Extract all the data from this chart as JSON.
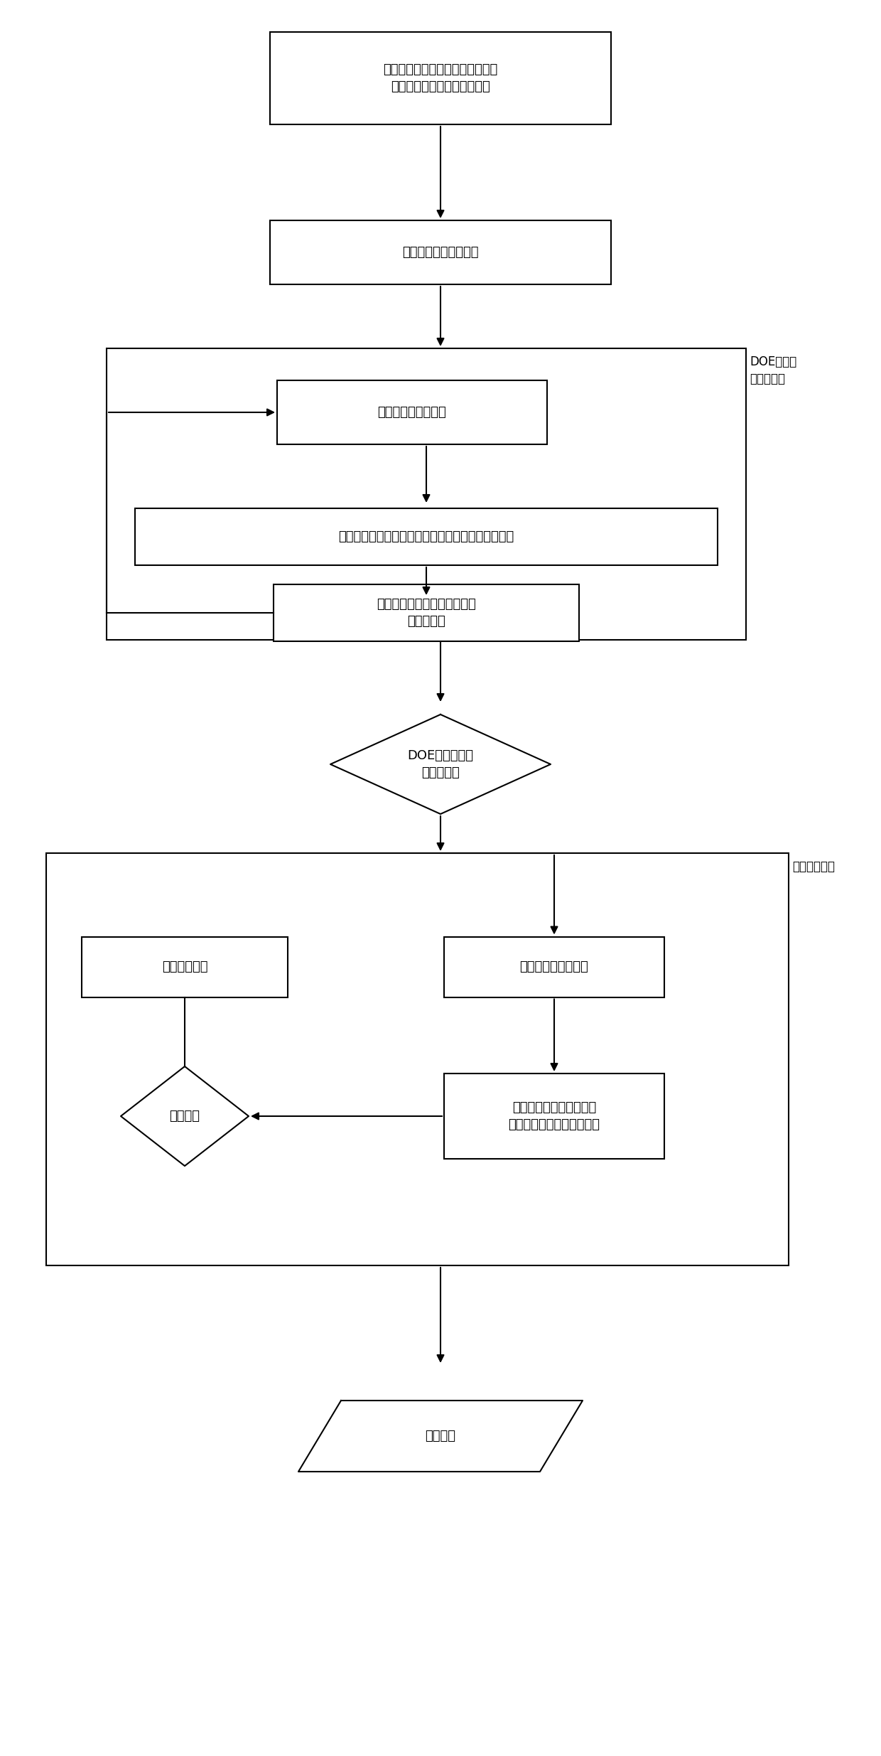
{
  "bg_color": "#ffffff",
  "box_color": "#ffffff",
  "box_edge": "#000000",
  "text_color": "#000000",
  "arrow_color": "#000000",
  "font_size": 13,
  "label_font_size": 12,
  "box1_text": "模型建立瞬态动力学有限元模型并\n计算，提取瞬态冲击载荷峰值",
  "box2_text": "接触面几何尺寸参数化",
  "box3_text": "改变接触面几何尺寸",
  "box4_text": "重新生成有限元模型并计算，提取瞬态冲击载荷峰值",
  "box5_text": "记录接触面几何尺寸及瞬态冲\n击载荷峰值",
  "diamond1_text": "DOE计算及敏感\n度分析结果",
  "box6_text": "梯度优化算法",
  "box7_text": "改变接触面几何尺寸",
  "box8_text": "重新生成有限元模型并计\n算，提取瞬态冲击载荷峰值",
  "diamond2_text": "结果比较",
  "parallelogram1_text": "最优结果",
  "label_doe": "DOE计算及\n敏感度分析",
  "label_wave": "波音探索算法"
}
